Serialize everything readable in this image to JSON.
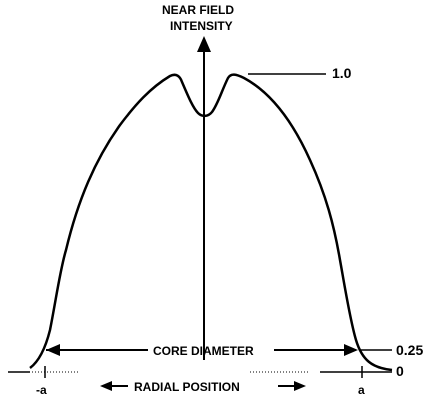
{
  "labels": {
    "near_field_line1": "NEAR FIELD",
    "near_field_line2": "INTENSITY",
    "core_diameter": "CORE DIAMETER",
    "radial_position": "RADIAL POSITION",
    "value_1": "1.0",
    "value_025": "0.25",
    "value_0": "0",
    "tick_neg_a": "-a",
    "tick_a": "a"
  },
  "colors": {
    "ink": "#000000",
    "background": "#ffffff"
  }
}
